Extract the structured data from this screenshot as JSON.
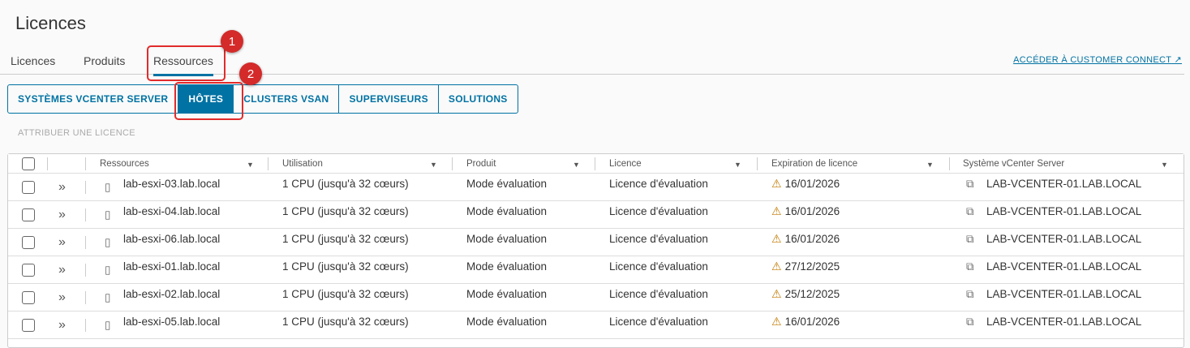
{
  "title": "Licences",
  "tabs": [
    "Licences",
    "Produits",
    "Ressources"
  ],
  "customer_connect": "ACCÉDER À CUSTOMER CONNECT",
  "segments": [
    "SYSTÈMES VCENTER SERVER",
    "HÔTES",
    "CLUSTERS VSAN",
    "SUPERVISEURS",
    "SOLUTIONS"
  ],
  "assign": "ATTRIBUER UNE LICENCE",
  "columns": [
    "Ressources",
    "Utilisation",
    "Produit",
    "Licence",
    "Expiration de licence",
    "Système vCenter Server"
  ],
  "rows": [
    [
      "lab-esxi-03.lab.local",
      "1 CPU (jusqu'à 32 cœurs)",
      "Mode évaluation",
      "Licence d'évaluation",
      "16/01/2026",
      "LAB-VCENTER-01.LAB.LOCAL"
    ],
    [
      "lab-esxi-04.lab.local",
      "1 CPU (jusqu'à 32 cœurs)",
      "Mode évaluation",
      "Licence d'évaluation",
      "16/01/2026",
      "LAB-VCENTER-01.LAB.LOCAL"
    ],
    [
      "lab-esxi-06.lab.local",
      "1 CPU (jusqu'à 32 cœurs)",
      "Mode évaluation",
      "Licence d'évaluation",
      "16/01/2026",
      "LAB-VCENTER-01.LAB.LOCAL"
    ],
    [
      "lab-esxi-01.lab.local",
      "1 CPU (jusqu'à 32 cœurs)",
      "Mode évaluation",
      "Licence d'évaluation",
      "27/12/2025",
      "LAB-VCENTER-01.LAB.LOCAL"
    ],
    [
      "lab-esxi-02.lab.local",
      "1 CPU (jusqu'à 32 cœurs)",
      "Mode évaluation",
      "Licence d'évaluation",
      "25/12/2025",
      "LAB-VCENTER-01.LAB.LOCAL"
    ],
    [
      "lab-esxi-05.lab.local",
      "1 CPU (jusqu'à 32 cœurs)",
      "Mode évaluation",
      "Licence d'évaluation",
      "16/01/2026",
      "LAB-VCENTER-01.LAB.LOCAL"
    ]
  ],
  "annotations": [
    "1",
    "2"
  ],
  "accent": "#0072a3"
}
